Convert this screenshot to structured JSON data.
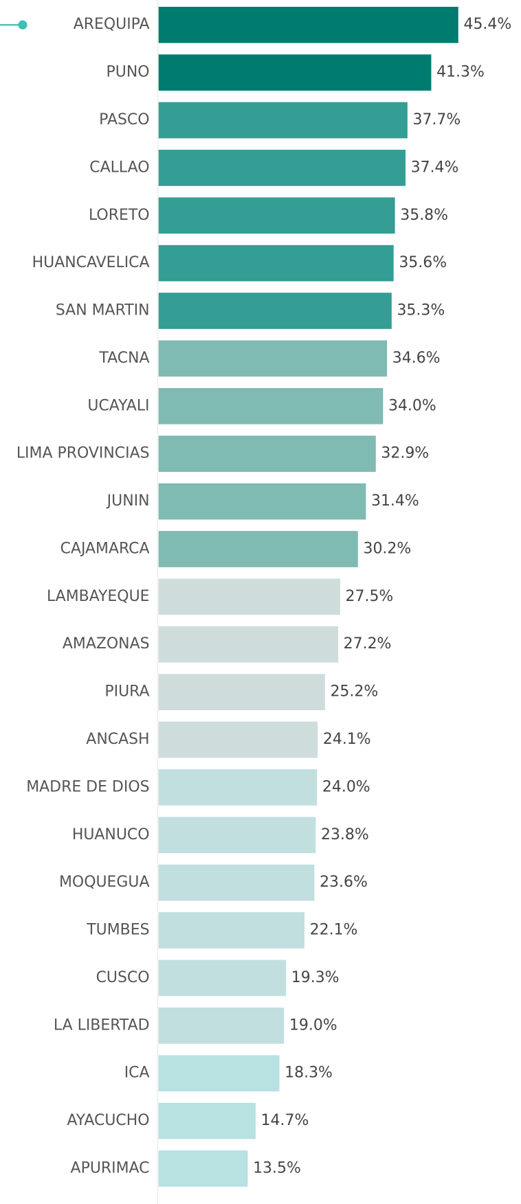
{
  "chart_data": {
    "type": "hbar",
    "categories": [
      "AREQUIPA",
      "PUNO",
      "PASCO",
      "CALLAO",
      "LORETO",
      "HUANCAVELICA",
      "SAN MARTIN",
      "TACNA",
      "UCAYALI",
      "LIMA PROVINCIAS",
      "JUNIN",
      "CAJAMARCA",
      "LAMBAYEQUE",
      "AMAZONAS",
      "PIURA",
      "ANCASH",
      "MADRE DE DIOS",
      "HUANUCO",
      "MOQUEGUA",
      "TUMBES",
      "CUSCO",
      "LA LIBERTAD",
      "ICA",
      "AYACUCHO",
      "APURIMAC"
    ],
    "values": [
      45.4,
      41.3,
      37.7,
      37.4,
      35.8,
      35.6,
      35.3,
      34.6,
      34.0,
      32.9,
      31.4,
      30.2,
      27.5,
      27.2,
      25.2,
      24.1,
      24.0,
      23.8,
      23.6,
      22.1,
      19.3,
      19.0,
      18.3,
      14.7,
      13.5
    ],
    "value_labels": [
      "45.4%",
      "41.3%",
      "37.7%",
      "37.4%",
      "35.8%",
      "35.6%",
      "35.3%",
      "34.6%",
      "34.0%",
      "32.9%",
      "31.4%",
      "30.2%",
      "27.5%",
      "27.2%",
      "25.2%",
      "24.1%",
      "24.0%",
      "23.8%",
      "23.6%",
      "22.1%",
      "19.3%",
      "19.0%",
      "18.3%",
      "14.7%",
      "13.5%"
    ],
    "colors": [
      "#007b6f",
      "#007b6f",
      "#349d94",
      "#349d94",
      "#349d94",
      "#349d94",
      "#349d94",
      "#7fbab3",
      "#7fbab3",
      "#7fbab3",
      "#7fbab3",
      "#7fbab3",
      "#cfdcdc",
      "#cfdcdc",
      "#cfdcdc",
      "#cfdcdc",
      "#c1dfdf",
      "#c1dfdf",
      "#c1dfdf",
      "#c1dfdf",
      "#c1dfdf",
      "#c1dfdf",
      "#b8e1e1",
      "#b8e1e1",
      "#b8e1e1"
    ]
  }
}
